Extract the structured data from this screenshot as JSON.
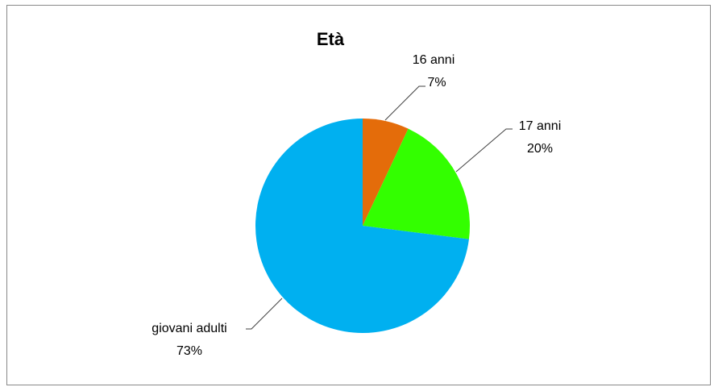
{
  "chart_data": {
    "type": "pie",
    "title": "Età",
    "categories": [
      "16 anni",
      "17 anni",
      "giovani adulti"
    ],
    "values": [
      7,
      20,
      73
    ],
    "value_labels": [
      "7%",
      "20%",
      "73%"
    ],
    "colors": [
      "#e46c0a",
      "#33ff00",
      "#00b0f0"
    ]
  }
}
